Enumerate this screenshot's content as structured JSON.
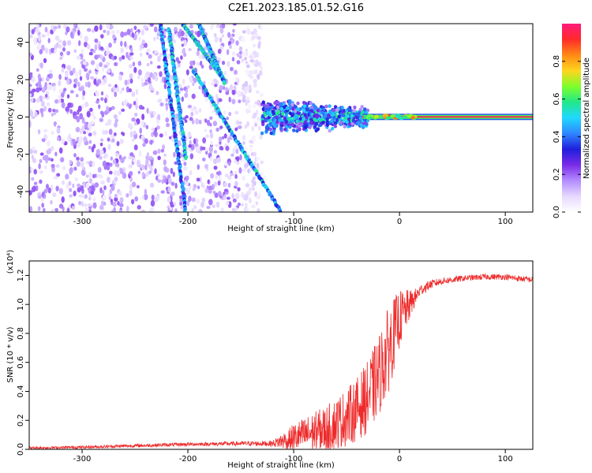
{
  "title": "C2E1.2023.185.01.52.G16",
  "colors": {
    "snr_line": "#ee2a2a",
    "colormap": [
      "#ffffff",
      "#e6d9ff",
      "#b48cff",
      "#7a2be8",
      "#1f1fdc",
      "#2f86ff",
      "#20d8ff",
      "#22e88a",
      "#7dff2a",
      "#ffd51e",
      "#ff8a14",
      "#ff2a2a",
      "#ff1a7a"
    ]
  },
  "chart_data": [
    {
      "type": "heatmap",
      "xlabel": "Height of straight line (km)",
      "ylabel": "Frequency (Hz)",
      "xlim": [
        -350,
        126
      ],
      "ylim": [
        -51,
        50
      ],
      "x_ticks": [
        -300,
        -200,
        -100,
        0,
        100
      ],
      "y_ticks": [
        -40,
        -20,
        0,
        20,
        40
      ],
      "colorbar": {
        "label": "Normalized spectral amplitude",
        "range": [
          0,
          1
        ],
        "ticks": [
          "0.0",
          "0.2",
          "0.4",
          "0.6",
          "0.8"
        ]
      },
      "features": [
        {
          "kind": "noise-field",
          "x_range": [
            -350,
            -130
          ],
          "y_range": [
            -51,
            50
          ],
          "density": "high"
        },
        {
          "kind": "streak",
          "from": [
            -226,
            50
          ],
          "to": [
            -202,
            -51
          ],
          "amplitude": 0.4
        },
        {
          "kind": "streak",
          "from": [
            -218,
            47
          ],
          "to": [
            -202,
            -22
          ],
          "amplitude": 0.45
        },
        {
          "kind": "streak",
          "from": [
            -205,
            50
          ],
          "to": [
            -166,
            20
          ],
          "amplitude": 0.5
        },
        {
          "kind": "streak",
          "from": [
            -195,
            25
          ],
          "to": [
            -112,
            -51
          ],
          "amplitude": 0.45
        },
        {
          "kind": "streak",
          "from": [
            -190,
            50
          ],
          "to": [
            -165,
            18
          ],
          "amplitude": 0.45
        },
        {
          "kind": "blob",
          "x_range": [
            -130,
            -30
          ],
          "y_range": [
            -10,
            12
          ],
          "amplitude": 0.3
        },
        {
          "kind": "carrier",
          "x_range": [
            -35,
            126
          ],
          "y": 0,
          "amplitude": 0.95
        }
      ]
    },
    {
      "type": "line",
      "xlabel": "Height of straight line (km)",
      "ylabel": "SNR (10 * v/v)",
      "y_multiplier": "(x10⁴)",
      "xlim": [
        -350,
        126
      ],
      "ylim": [
        0,
        1.3
      ],
      "x_ticks": [
        -300,
        -200,
        -100,
        0,
        100
      ],
      "y_ticks": [
        "0.0",
        "0.2",
        "0.4",
        "0.6",
        "0.8",
        "1.0",
        "1.2"
      ],
      "series": [
        {
          "x": [
            -350,
            -300,
            -250,
            -200,
            -150,
            -120,
            -110,
            -100,
            -90,
            -80,
            -70,
            -60,
            -50,
            -40,
            -30,
            -20,
            -10,
            -5,
            0,
            5,
            10,
            15,
            20,
            30,
            40,
            60,
            80,
            100,
            110,
            126
          ],
          "y": [
            0.01,
            0.015,
            0.025,
            0.035,
            0.04,
            0.04,
            0.06,
            0.08,
            0.1,
            0.12,
            0.14,
            0.18,
            0.22,
            0.28,
            0.36,
            0.5,
            0.7,
            0.8,
            0.9,
            0.95,
            1.0,
            1.05,
            1.1,
            1.14,
            1.16,
            1.18,
            1.19,
            1.19,
            1.18,
            1.17
          ],
          "noise": [
            0.008,
            0.01,
            0.012,
            0.012,
            0.015,
            0.02,
            0.06,
            0.1,
            0.12,
            0.14,
            0.16,
            0.18,
            0.2,
            0.22,
            0.25,
            0.28,
            0.3,
            0.25,
            0.2,
            0.15,
            0.1,
            0.06,
            0.04,
            0.03,
            0.025,
            0.02,
            0.02,
            0.02,
            0.02,
            0.02
          ]
        }
      ]
    }
  ]
}
